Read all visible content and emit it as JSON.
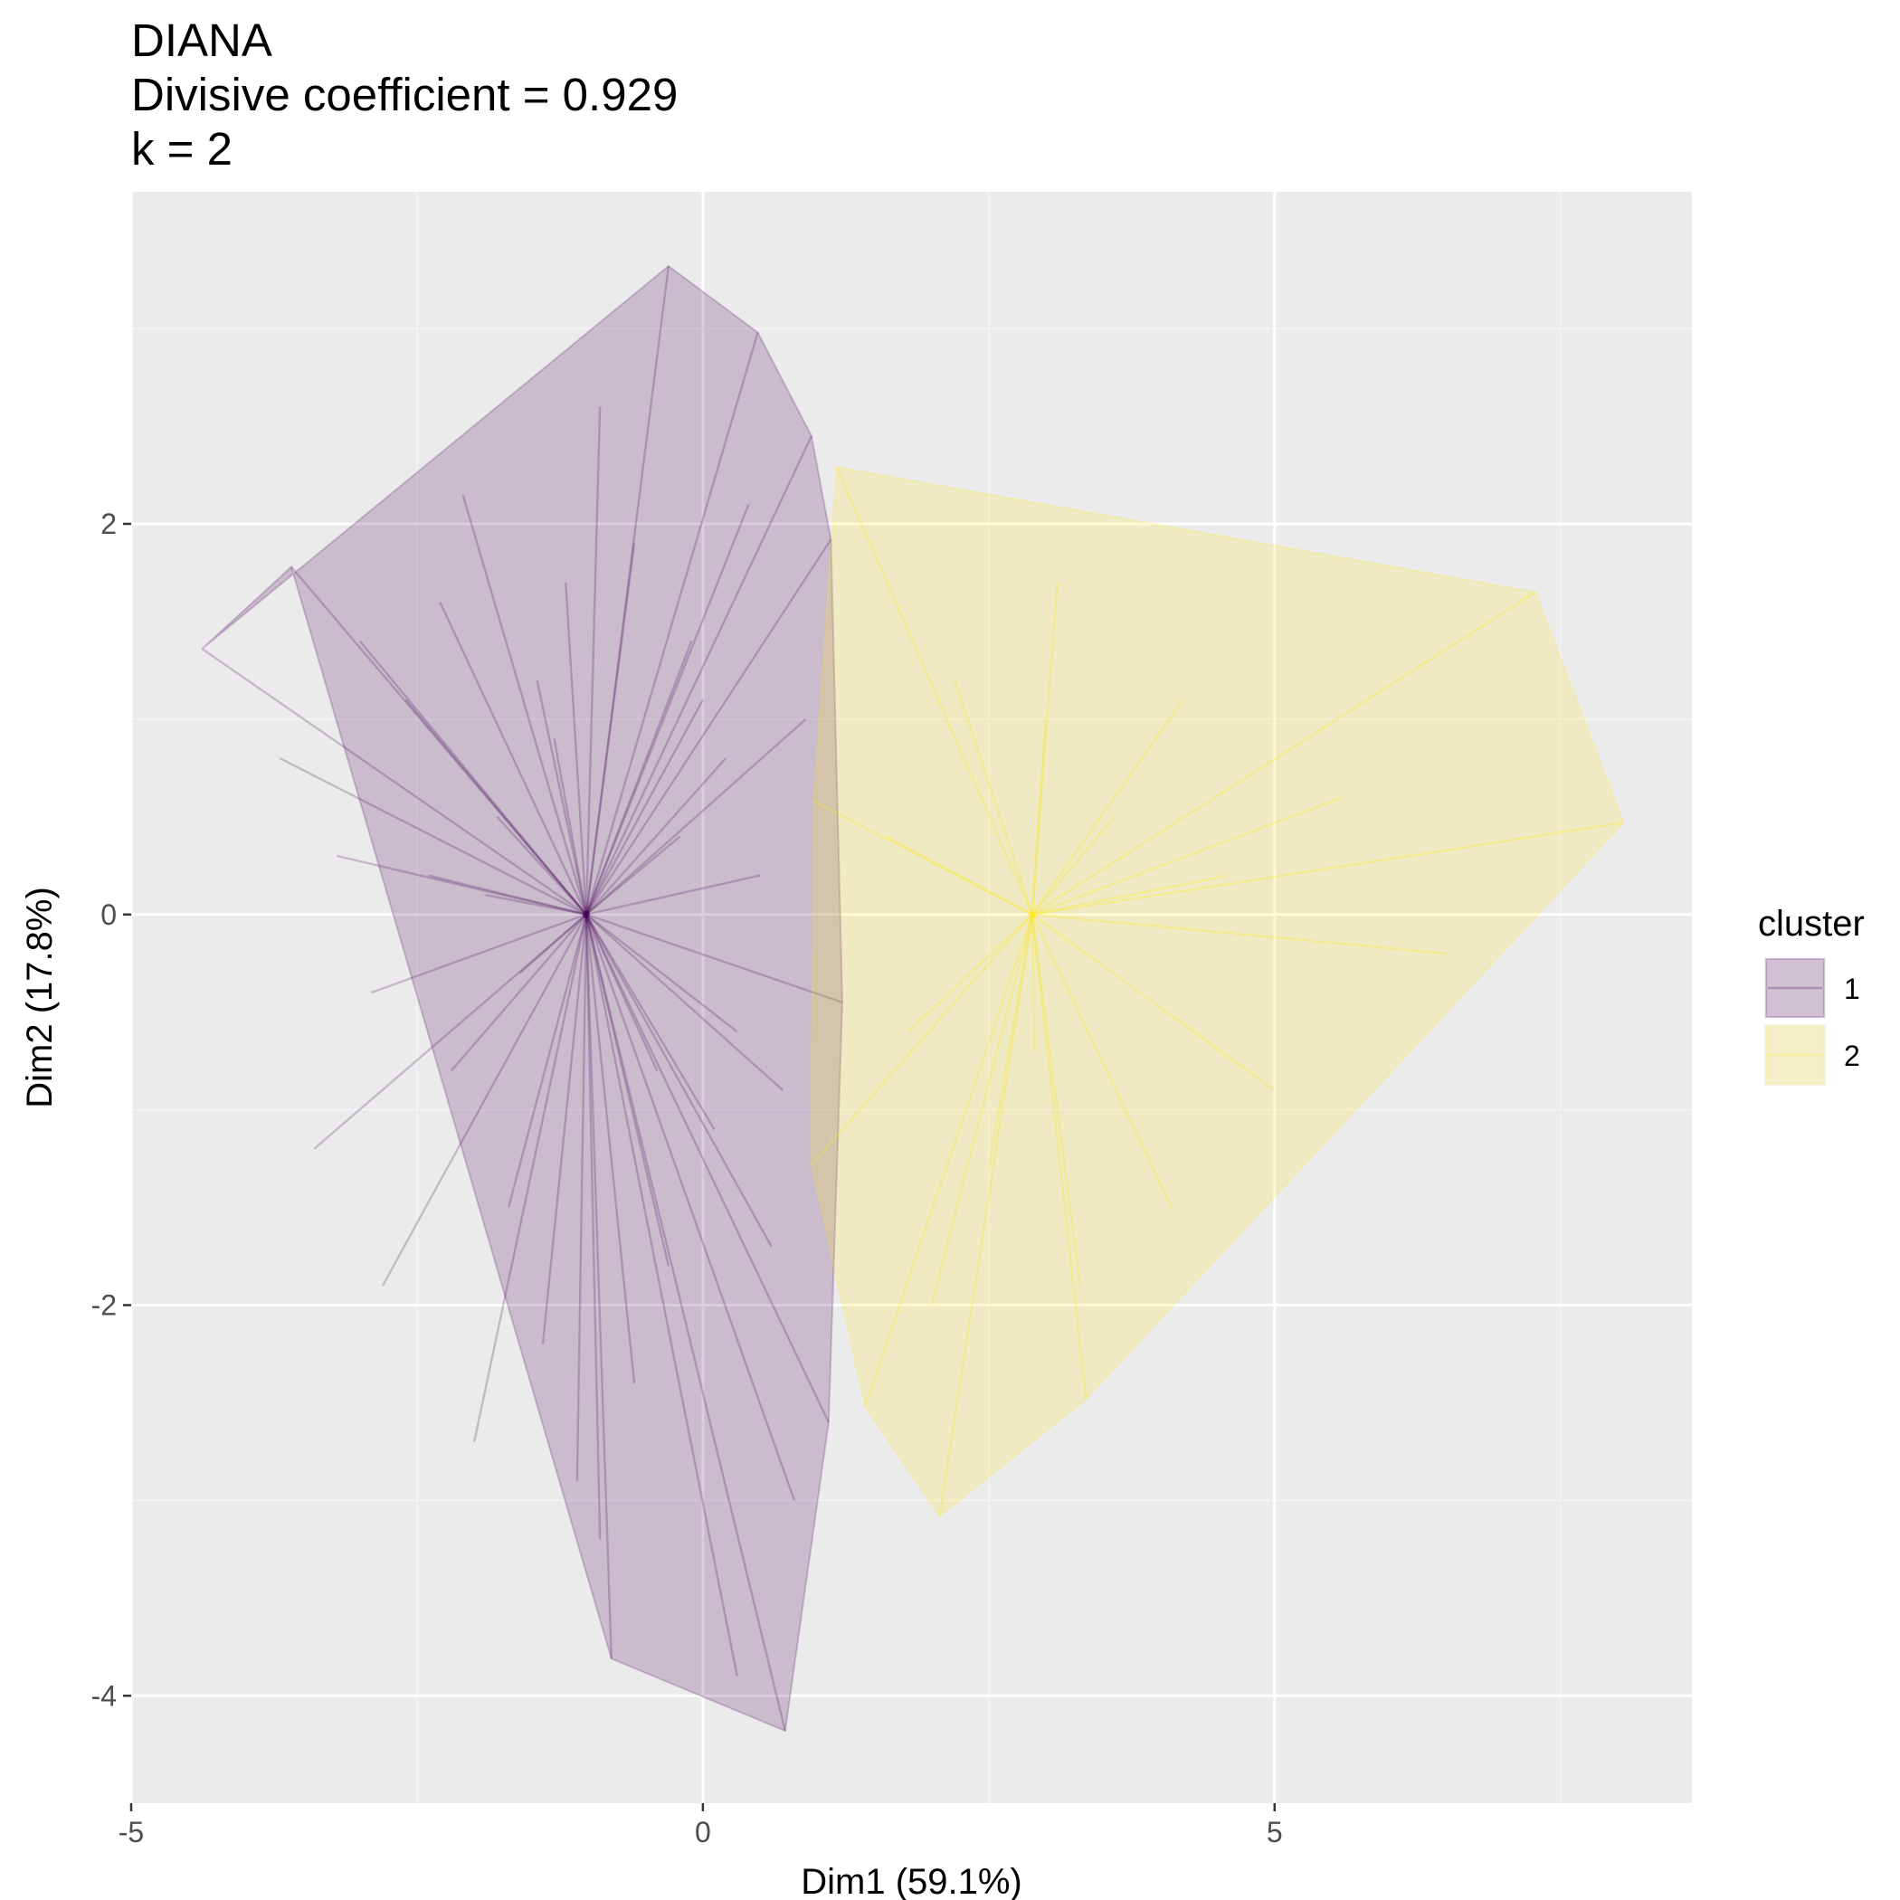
{
  "chart_data": {
    "type": "scatter",
    "title_lines": [
      "DIANA",
      "Divisive coefficient = 0.929",
      "k = 2"
    ],
    "xlabel": "Dim1 (59.1%)",
    "ylabel": "Dim2 (17.8%)",
    "xlim": [
      -5,
      8.65
    ],
    "ylim": [
      -4.55,
      3.7
    ],
    "xticks": [
      -5,
      0,
      5
    ],
    "yticks": [
      -4,
      -2,
      0,
      2
    ],
    "grid": true,
    "legend": {
      "title": "cluster",
      "position": "right",
      "entries": [
        "1",
        "2"
      ]
    },
    "series": [
      {
        "name": "1",
        "color": "#440154",
        "fill": "#cbbdd0",
        "center": [
          -1.02,
          0.0
        ],
        "hull": [
          [
            -0.3,
            3.32
          ],
          [
            0.48,
            2.98
          ],
          [
            0.95,
            2.45
          ],
          [
            1.12,
            1.92
          ],
          [
            1.22,
            -0.45
          ],
          [
            1.1,
            -2.6
          ],
          [
            0.72,
            -4.18
          ],
          [
            -0.8,
            -3.81
          ],
          [
            -3.6,
            1.78
          ],
          [
            -4.38,
            1.36
          ]
        ],
        "points": [
          [
            -0.3,
            3.32
          ],
          [
            0.48,
            2.98
          ],
          [
            0.95,
            2.45
          ],
          [
            1.12,
            1.92
          ],
          [
            1.22,
            -0.45
          ],
          [
            1.1,
            -2.6
          ],
          [
            0.72,
            -4.18
          ],
          [
            -0.8,
            -3.81
          ],
          [
            -3.6,
            1.78
          ],
          [
            -4.38,
            1.36
          ],
          [
            -2.1,
            2.15
          ],
          [
            -1.45,
            1.2
          ],
          [
            -1.3,
            0.9
          ],
          [
            -1.8,
            0.5
          ],
          [
            -2.6,
            1.1
          ],
          [
            -3.2,
            0.3
          ],
          [
            -2.9,
            -0.4
          ],
          [
            -2.2,
            -0.8
          ],
          [
            -1.7,
            -1.5
          ],
          [
            -1.4,
            -2.2
          ],
          [
            -1.1,
            -2.9
          ],
          [
            -0.6,
            -2.4
          ],
          [
            -0.3,
            -1.8
          ],
          [
            0.1,
            -1.1
          ],
          [
            0.3,
            -0.6
          ],
          [
            0.5,
            0.2
          ],
          [
            0.2,
            0.8
          ],
          [
            -0.1,
            1.4
          ],
          [
            -0.6,
            1.9
          ],
          [
            -0.9,
            2.6
          ],
          [
            0.3,
            -3.9
          ],
          [
            0.8,
            -3.0
          ],
          [
            0.6,
            -1.7
          ],
          [
            0.0,
            1.1
          ],
          [
            -2.4,
            0.2
          ],
          [
            -3.4,
            -1.2
          ],
          [
            -2.8,
            -1.9
          ],
          [
            -2.0,
            -2.7
          ],
          [
            -0.9,
            -3.2
          ],
          [
            0.4,
            2.1
          ],
          [
            0.9,
            1.0
          ],
          [
            -1.2,
            1.7
          ],
          [
            -2.3,
            1.6
          ],
          [
            -3.0,
            1.4
          ],
          [
            -3.7,
            0.8
          ],
          [
            -0.4,
            -0.8
          ],
          [
            -1.9,
            0.1
          ],
          [
            0.7,
            -0.9
          ],
          [
            -0.2,
            0.4
          ],
          [
            -1.6,
            -0.3
          ]
        ]
      },
      {
        "name": "2",
        "color": "#fde725",
        "fill": "#f0e9bf",
        "center": [
          2.88,
          0.0
        ],
        "hull": [
          [
            1.17,
            2.29
          ],
          [
            7.28,
            1.65
          ],
          [
            8.05,
            0.47
          ],
          [
            3.35,
            -2.48
          ],
          [
            2.07,
            -3.08
          ],
          [
            1.42,
            -2.52
          ],
          [
            0.95,
            -1.28
          ],
          [
            0.97,
            0.58
          ]
        ],
        "points": [
          [
            1.17,
            2.29
          ],
          [
            7.28,
            1.65
          ],
          [
            8.05,
            0.47
          ],
          [
            3.35,
            -2.48
          ],
          [
            2.07,
            -3.08
          ],
          [
            1.42,
            -2.52
          ],
          [
            0.95,
            -1.28
          ],
          [
            0.97,
            0.58
          ],
          [
            3.1,
            1.7
          ],
          [
            4.2,
            1.1
          ],
          [
            5.6,
            0.6
          ],
          [
            6.5,
            -0.2
          ],
          [
            5.0,
            -0.9
          ],
          [
            4.1,
            -1.5
          ],
          [
            3.3,
            -1.9
          ],
          [
            2.5,
            -1.3
          ],
          [
            1.8,
            -0.6
          ],
          [
            1.6,
            0.4
          ],
          [
            2.2,
            1.2
          ],
          [
            3.6,
            0.5
          ],
          [
            4.6,
            0.2
          ],
          [
            2.9,
            -0.7
          ],
          [
            3.0,
            1.0
          ],
          [
            2.0,
            -2.0
          ]
        ]
      }
    ]
  }
}
